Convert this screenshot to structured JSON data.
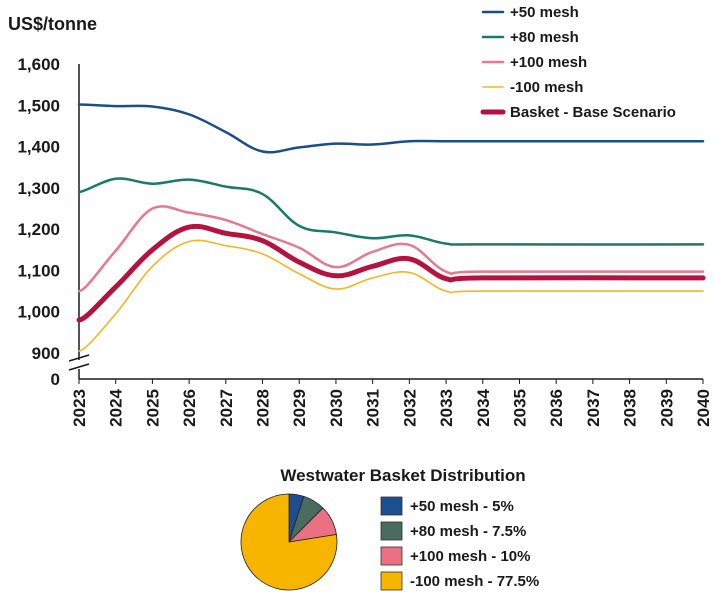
{
  "chart_data": [
    {
      "type": "line",
      "ylabel": "US$/tonne",
      "x": [
        "2023",
        "2024",
        "2025",
        "2026",
        "2027",
        "2028",
        "2029",
        "2030",
        "2031",
        "2032",
        "2033",
        "2034",
        "2035",
        "2036",
        "2037",
        "2038",
        "2039",
        "2040"
      ],
      "y_ticks": [
        "1,600",
        "1,500",
        "1,400",
        "1,300",
        "1,200",
        "1,100",
        "1,000",
        "900",
        "0"
      ],
      "ylim": [
        900,
        1600
      ],
      "axis_break": true,
      "grid": false,
      "legend_position": "top-right",
      "series": [
        {
          "name": "+50 mesh",
          "color": "#1a4e8a",
          "width": 2.5,
          "points": [
            [
              2023,
              1502
            ],
            [
              2024,
              1498
            ],
            [
              2025,
              1497
            ],
            [
              2026,
              1478
            ],
            [
              2027,
              1435
            ],
            [
              2028,
              1388
            ],
            [
              2029,
              1398
            ],
            [
              2030,
              1407
            ],
            [
              2031,
              1405
            ],
            [
              2032,
              1413
            ],
            [
              2033,
              1413
            ],
            [
              2034,
              1413
            ],
            [
              2040,
              1413
            ]
          ]
        },
        {
          "name": "+80 mesh",
          "color": "#1a7a6a",
          "width": 2.5,
          "points": [
            [
              2023,
              1290
            ],
            [
              2024,
              1322
            ],
            [
              2025,
              1310
            ],
            [
              2026,
              1320
            ],
            [
              2027,
              1303
            ],
            [
              2028,
              1285
            ],
            [
              2029,
              1208
            ],
            [
              2030,
              1192
            ],
            [
              2031,
              1178
            ],
            [
              2032,
              1185
            ],
            [
              2033,
              1165
            ],
            [
              2034,
              1163
            ],
            [
              2040,
              1163
            ]
          ]
        },
        {
          "name": "+100 mesh",
          "color": "#e8788c",
          "width": 2.5,
          "points": [
            [
              2023,
              1050
            ],
            [
              2024,
              1148
            ],
            [
              2025,
              1250
            ],
            [
              2026,
              1240
            ],
            [
              2027,
              1222
            ],
            [
              2028,
              1188
            ],
            [
              2029,
              1155
            ],
            [
              2030,
              1108
            ],
            [
              2031,
              1145
            ],
            [
              2032,
              1162
            ],
            [
              2033,
              1097
            ],
            [
              2034,
              1097
            ],
            [
              2040,
              1097
            ]
          ]
        },
        {
          "name": "-100 mesh",
          "color": "#f5b51f",
          "width": 1.6,
          "points": [
            [
              2023,
              905
            ],
            [
              2024,
              995
            ],
            [
              2025,
              1110
            ],
            [
              2026,
              1170
            ],
            [
              2027,
              1160
            ],
            [
              2028,
              1140
            ],
            [
              2029,
              1092
            ],
            [
              2030,
              1055
            ],
            [
              2031,
              1082
            ],
            [
              2032,
              1095
            ],
            [
              2033,
              1050
            ],
            [
              2034,
              1050
            ],
            [
              2040,
              1050
            ]
          ]
        },
        {
          "name": "Basket - Base Scenario",
          "color": "#b5123f",
          "width": 5,
          "points": [
            [
              2023,
              980
            ],
            [
              2024,
              1060
            ],
            [
              2025,
              1150
            ],
            [
              2026,
              1205
            ],
            [
              2027,
              1190
            ],
            [
              2028,
              1172
            ],
            [
              2029,
              1120
            ],
            [
              2030,
              1087
            ],
            [
              2031,
              1110
            ],
            [
              2032,
              1128
            ],
            [
              2033,
              1080
            ],
            [
              2034,
              1082
            ],
            [
              2040,
              1082
            ]
          ]
        }
      ]
    },
    {
      "type": "pie",
      "title": "Westwater Basket Distribution",
      "slices": [
        {
          "label": "+50 mesh - 5%",
          "value": 5,
          "color": "#1d4e8f"
        },
        {
          "label": "+80 mesh - 7.5%",
          "value": 7.5,
          "color": "#4a6b60"
        },
        {
          "label": "+100 mesh - 10%",
          "value": 10,
          "color": "#ec7083"
        },
        {
          "label": "-100 mesh - 77.5%",
          "value": 77.5,
          "color": "#f7b500"
        }
      ]
    }
  ]
}
